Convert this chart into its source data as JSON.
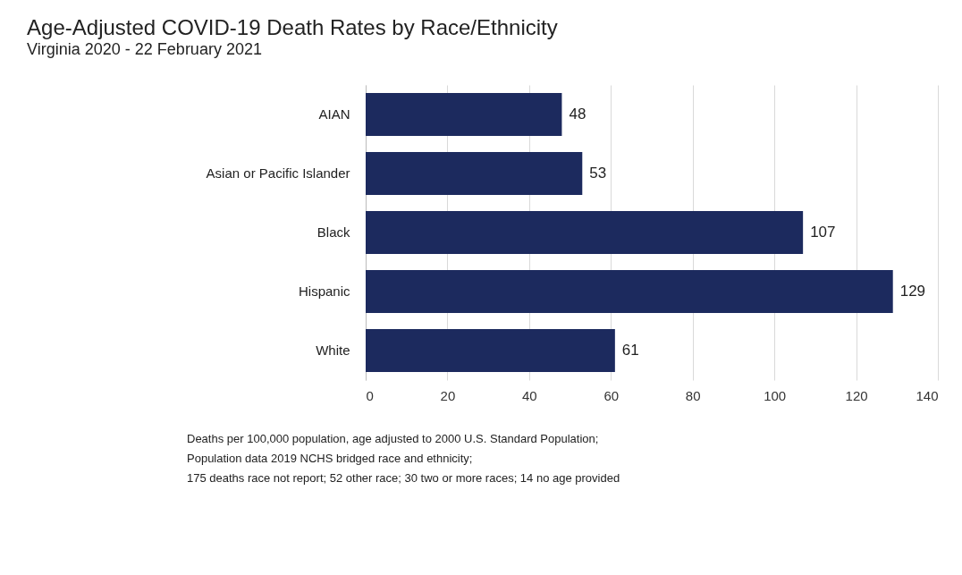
{
  "chart_data": {
    "type": "bar",
    "orientation": "horizontal",
    "title": "Age-Adjusted COVID-19 Death Rates by Race/Ethnicity",
    "subtitle": "Virginia 2020 - 22 February 2021",
    "categories": [
      "AIAN",
      "Asian or Pacific Islander",
      "Black",
      "Hispanic",
      "White"
    ],
    "values": [
      48,
      53,
      107,
      129,
      61
    ],
    "color": "#1c2a5e",
    "data_labels": true,
    "xlim": [
      0,
      140
    ],
    "xticks": [
      0,
      20,
      40,
      60,
      80,
      100,
      120,
      140
    ],
    "grid": "x",
    "annotations": [
      "Deaths per 100,000  population, age adjusted to 2000 U.S. Standard Population;",
      "Population data 2019 NCHS bridged race and ethnicity;",
      "175 deaths race not report; 52 other race; 30 two or more races; 14 no age provided"
    ]
  }
}
